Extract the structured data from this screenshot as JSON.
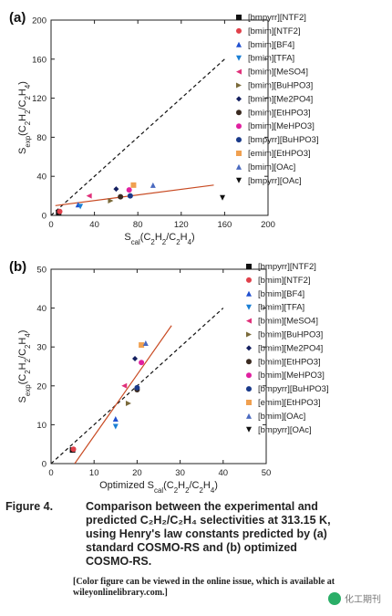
{
  "chart_data": [
    {
      "panel": "(a)",
      "type": "scatter",
      "xlabel": "Scal(C2H2/C2H4)",
      "ylabel": "Sexp(C2H2/C2H4)",
      "xlim": [
        0,
        200
      ],
      "ylim": [
        0,
        200
      ],
      "xticks": [
        0,
        40,
        80,
        120,
        160,
        200
      ],
      "yticks": [
        0,
        40,
        80,
        120,
        160,
        200
      ],
      "legend_position": "top-right",
      "series": [
        {
          "name": "[bmpyrr][NTF2]",
          "marker": "square",
          "color": "#111111",
          "points": [
            [
              7,
              3
            ]
          ]
        },
        {
          "name": "[bmim][NTF2]",
          "marker": "circle",
          "color": "#e0404a",
          "points": [
            [
              8,
              4
            ]
          ]
        },
        {
          "name": "[bmim][BF4]",
          "marker": "triangle-up",
          "color": "#2050d0",
          "points": [
            [
              25,
              11
            ]
          ]
        },
        {
          "name": "[bmim][TFA]",
          "marker": "triangle-down",
          "color": "#1a7fd4",
          "points": [
            [
              27,
              9
            ]
          ]
        },
        {
          "name": "[bmim][MeSO4]",
          "marker": "triangle-left",
          "color": "#e0307a",
          "points": [
            [
              35,
              20
            ]
          ]
        },
        {
          "name": "[bmim][BuHPO3]",
          "marker": "triangle-right",
          "color": "#7a6a3a",
          "points": [
            [
              55,
              15
            ]
          ]
        },
        {
          "name": "[bmim][Me2PO4]",
          "marker": "diamond",
          "color": "#152060",
          "points": [
            [
              60,
              27
            ]
          ]
        },
        {
          "name": "[bmim][EtHPO3]",
          "marker": "circle",
          "color": "#3a2a20",
          "points": [
            [
              64,
              19
            ]
          ]
        },
        {
          "name": "[bmim][MeHPO3]",
          "marker": "circle",
          "color": "#e020a0",
          "points": [
            [
              72,
              26
            ]
          ]
        },
        {
          "name": "[bmpyrr][BuHPO3]",
          "marker": "circle",
          "color": "#1a3a8a",
          "points": [
            [
              73,
              20
            ]
          ]
        },
        {
          "name": "[emim][EtHPO3]",
          "marker": "square",
          "color": "#f0a050",
          "points": [
            [
              76,
              31
            ]
          ]
        },
        {
          "name": "[bmim][OAc]",
          "marker": "triangle-up",
          "color": "#4a6ac0",
          "points": [
            [
              94,
              31
            ]
          ]
        },
        {
          "name": "[bmpyrr][OAc]",
          "marker": "triangle-down",
          "color": "#111111",
          "points": [
            [
              158,
              18
            ]
          ]
        }
      ],
      "lines": [
        {
          "style": "dashed",
          "color": "#111111",
          "from": [
            0,
            0
          ],
          "to": [
            160,
            160
          ]
        },
        {
          "style": "solid",
          "color": "#c84a22",
          "from": [
            4,
            10
          ],
          "to": [
            150,
            31
          ]
        }
      ]
    },
    {
      "panel": "(b)",
      "type": "scatter",
      "xlabel": "Optimized Scal(C2H2/C2H4)",
      "ylabel": "Sexp(C2H2/C2H4)",
      "xlim": [
        0,
        50
      ],
      "ylim": [
        0,
        50
      ],
      "xticks": [
        0,
        10,
        20,
        30,
        40,
        50
      ],
      "yticks": [
        0,
        10,
        20,
        30,
        40,
        50
      ],
      "legend_position": "top-right",
      "series": [
        {
          "name": "[bmpyrr][NTF2]",
          "marker": "square",
          "color": "#111111",
          "points": [
            [
              5,
              3.5
            ]
          ]
        },
        {
          "name": "[bmim][NTF2]",
          "marker": "circle",
          "color": "#e0404a",
          "points": [
            [
              5.2,
              3.7
            ]
          ]
        },
        {
          "name": "[bmim][BF4]",
          "marker": "triangle-up",
          "color": "#2050d0",
          "points": [
            [
              15,
              11.5
            ]
          ]
        },
        {
          "name": "[bmim][TFA]",
          "marker": "triangle-down",
          "color": "#1a7fd4",
          "points": [
            [
              15,
              9.5
            ]
          ]
        },
        {
          "name": "[bmim][MeSO4]",
          "marker": "triangle-left",
          "color": "#e0307a",
          "points": [
            [
              17,
              20
            ]
          ]
        },
        {
          "name": "[bmim][BuHPO3]",
          "marker": "triangle-right",
          "color": "#7a6a3a",
          "points": [
            [
              18,
              15.5
            ]
          ]
        },
        {
          "name": "[bmim][Me2PO4]",
          "marker": "diamond",
          "color": "#152060",
          "points": [
            [
              19.5,
              27
            ]
          ]
        },
        {
          "name": "[bmim][EtHPO3]",
          "marker": "circle",
          "color": "#3a2a20",
          "points": [
            [
              20,
              19
            ]
          ]
        },
        {
          "name": "[bmim][MeHPO3]",
          "marker": "circle",
          "color": "#e020a0",
          "points": [
            [
              21,
              26
            ]
          ]
        },
        {
          "name": "[bmpyrr][BuHPO3]",
          "marker": "circle",
          "color": "#1a3a8a",
          "points": [
            [
              20,
              19.5
            ]
          ]
        },
        {
          "name": "[emim][EtHPO3]",
          "marker": "square",
          "color": "#f0a050",
          "points": [
            [
              21,
              30.5
            ]
          ]
        },
        {
          "name": "[bmim][OAc]",
          "marker": "triangle-up",
          "color": "#4a6ac0",
          "points": [
            [
              22,
              31
            ]
          ]
        },
        {
          "name": "[bmpyrr][OAc]",
          "marker": "triangle-down",
          "color": "#111111",
          "points": []
        }
      ],
      "lines": [
        {
          "style": "dashed",
          "color": "#111111",
          "from": [
            0,
            0
          ],
          "to": [
            40,
            40
          ]
        },
        {
          "style": "solid",
          "color": "#c84a22",
          "from": [
            5.5,
            0
          ],
          "to": [
            28,
            35.5
          ]
        }
      ]
    }
  ],
  "figure": {
    "label": "Figure 4.",
    "caption_lines": [
      "Comparison between the experimental and",
      "predicted C₂H₂/C₂H₄ selectivities at 313.15 K,",
      "using Henry's law constants predicted by (a)",
      "standard COSMO-RS and (b) optimized",
      "COSMO-RS."
    ],
    "note": "[Color figure can be viewed in the online issue, which is available at wileyonlinelibrary.com.]",
    "watermark": "化工期刊"
  }
}
